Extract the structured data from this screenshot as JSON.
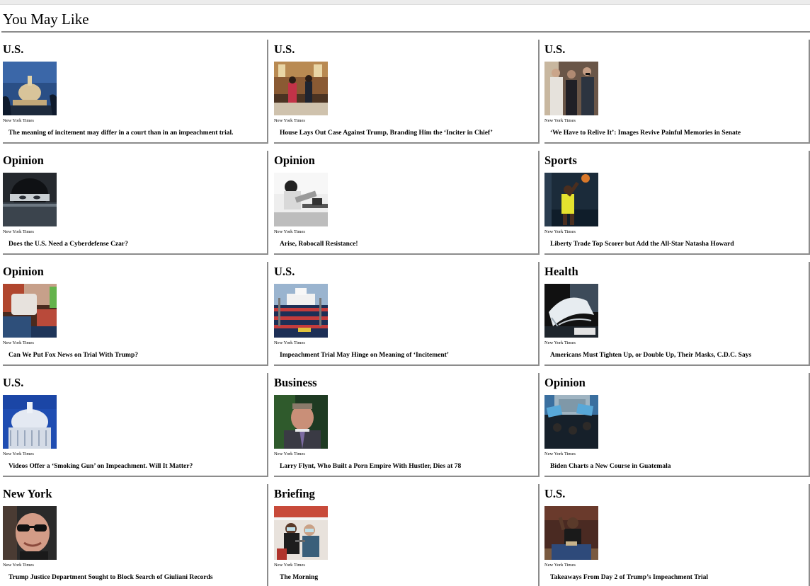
{
  "page": {
    "section_title": "You May Like"
  },
  "cards": [
    {
      "section": "U.S.",
      "source": "New York Times",
      "headline": "The meaning of incitement may differ in a court than in an impeachment trial.",
      "image": "capitol-dome-night-image"
    },
    {
      "section": "U.S.",
      "source": "New York Times",
      "headline": "House Lays Out Case Against Trump, Branding Him the ‘Inciter in Chief’",
      "image": "senate-chamber-image"
    },
    {
      "section": "U.S.",
      "source": "New York Times",
      "headline": "‘We Have to Relive It’: Images Revive Painful Memories in Senate",
      "image": "senators-hallway-image"
    },
    {
      "section": "Opinion",
      "source": "New York Times",
      "headline": "Does the U.S. Need a Cyberdefense Czar?",
      "image": "face-behind-screen-image"
    },
    {
      "section": "Opinion",
      "source": "New York Times",
      "headline": "Arise, Robocall Resistance!",
      "image": "telephone-operator-image"
    },
    {
      "section": "Sports",
      "source": "New York Times",
      "headline": "Liberty Trade Top Scorer but Add the All-Star Natasha Howard",
      "image": "basketball-player-image"
    },
    {
      "section": "Opinion",
      "source": "New York Times",
      "headline": "Can We Put Fox News on Trial With Trump?",
      "image": "fox-news-screens-image"
    },
    {
      "section": "U.S.",
      "source": "New York Times",
      "headline": "Impeachment Trial May Hinge on Meaning of ‘Incitement’",
      "image": "white-house-rally-image"
    },
    {
      "section": "Health",
      "source": "New York Times",
      "headline": "Americans Must Tighten Up, or Double Up, Their Masks, C.D.C. Says",
      "image": "mask-fabric-image"
    },
    {
      "section": "U.S.",
      "source": "New York Times",
      "headline": "Videos Offer a ‘Smoking Gun’ on Impeachment. Will It Matter?",
      "image": "capitol-dome-day-image"
    },
    {
      "section": "Business",
      "source": "New York Times",
      "headline": "Larry Flynt, Who Built a Porn Empire With Hustler, Dies at 78",
      "image": "larry-flynt-portrait-image"
    },
    {
      "section": "Opinion",
      "source": "New York Times",
      "headline": "Biden Charts a New Course in Guatemala",
      "image": "guatemala-protest-image"
    },
    {
      "section": "New York",
      "source": "New York Times",
      "headline": "Trump Justice Department Sought to Block Search of Giuliani Records",
      "image": "giuliani-portrait-image"
    },
    {
      "section": "Briefing",
      "source": "New York Times",
      "headline": "The Morning",
      "image": "vaccination-image"
    },
    {
      "section": "U.S.",
      "source": "New York Times",
      "headline": "Takeaways From Day 2 of Trump’s Impeachment Trial",
      "image": "speaker-podium-image"
    }
  ]
}
